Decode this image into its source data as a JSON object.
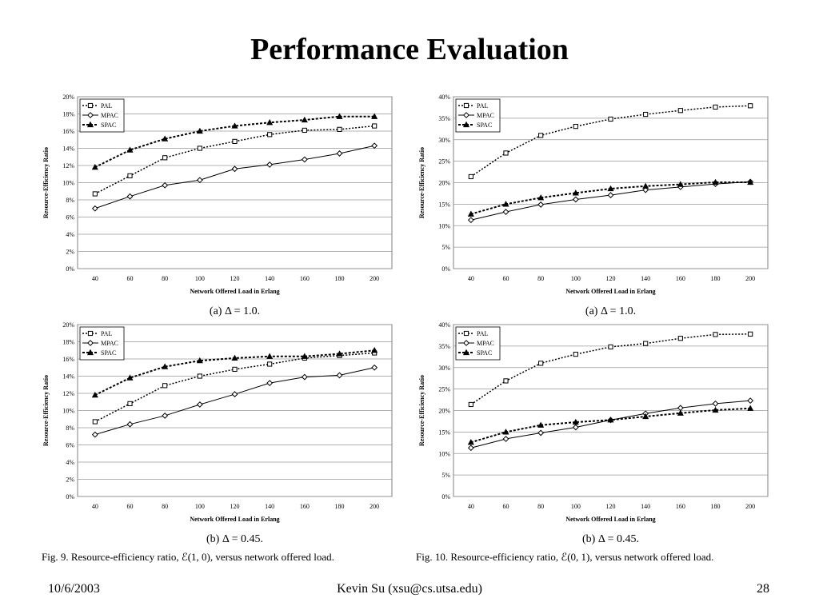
{
  "slide": {
    "title": "Performance Evaluation",
    "footer": {
      "date": "10/6/2003",
      "author": "Kevin Su (xsu@cs.utsa.edu)",
      "page": "28"
    },
    "fig9_caption": "Fig. 9.   Resource-efficiency ratio, ℰ(1, 0), versus network offered load.",
    "fig10_caption": "Fig. 10.   Resource-efficiency ratio, ℰ(0, 1), versus network offered load."
  },
  "chart_data": [
    {
      "type": "line",
      "subcaption": "(a) Δ = 1.0.",
      "xlabel": "Network Offered Load in Erlang",
      "ylabel": "Resource-Efficiency Ratio",
      "ylim": [
        0,
        20
      ],
      "yticks": [
        0,
        2,
        4,
        6,
        8,
        10,
        12,
        14,
        16,
        18,
        20
      ],
      "ytick_suffix": "%",
      "grid": true,
      "legend_position": "top-left",
      "x": [
        40,
        60,
        80,
        100,
        120,
        140,
        160,
        180,
        200
      ],
      "series": [
        {
          "name": "PAL",
          "marker": "square",
          "values": [
            8.7,
            10.8,
            12.9,
            14.0,
            14.8,
            15.6,
            16.1,
            16.2,
            16.6
          ]
        },
        {
          "name": "MPAC",
          "marker": "diamond",
          "values": [
            7.0,
            8.4,
            9.7,
            10.3,
            11.6,
            12.1,
            12.7,
            13.4,
            14.3
          ]
        },
        {
          "name": "SPAC",
          "marker": "triangle",
          "values": [
            11.8,
            13.8,
            15.1,
            16.0,
            16.6,
            17.0,
            17.3,
            17.7,
            17.7
          ]
        }
      ]
    },
    {
      "type": "line",
      "subcaption": "(a) Δ = 1.0.",
      "xlabel": "Network Offered Load in Erlang",
      "ylabel": "Resource-Efficiency Ratio",
      "ylim": [
        0,
        40
      ],
      "yticks": [
        0,
        5,
        10,
        15,
        20,
        25,
        30,
        35,
        40
      ],
      "ytick_suffix": "%",
      "grid": true,
      "legend_position": "top-left",
      "x": [
        40,
        60,
        80,
        100,
        120,
        140,
        160,
        180,
        200
      ],
      "series": [
        {
          "name": "PAL",
          "marker": "square",
          "values": [
            21.4,
            26.9,
            31.0,
            33.1,
            34.8,
            35.9,
            36.8,
            37.6,
            37.9
          ]
        },
        {
          "name": "MPAC",
          "marker": "diamond",
          "values": [
            11.3,
            13.2,
            14.9,
            16.1,
            17.1,
            18.3,
            19.0,
            19.7,
            20.2
          ]
        },
        {
          "name": "SPAC",
          "marker": "triangle",
          "values": [
            12.7,
            15.0,
            16.5,
            17.6,
            18.6,
            19.2,
            19.6,
            20.1,
            20.1
          ]
        }
      ]
    },
    {
      "type": "line",
      "subcaption": "(b) Δ = 0.45.",
      "xlabel": "Network Offered Load in Erlang",
      "ylabel": "Resource-Efficiency Ratio",
      "ylim": [
        0,
        20
      ],
      "yticks": [
        0,
        2,
        4,
        6,
        8,
        10,
        12,
        14,
        16,
        18,
        20
      ],
      "ytick_suffix": "%",
      "grid": true,
      "legend_position": "top-left",
      "x": [
        40,
        60,
        80,
        100,
        120,
        140,
        160,
        180,
        200
      ],
      "series": [
        {
          "name": "PAL",
          "marker": "square",
          "values": [
            8.7,
            10.8,
            12.9,
            14.0,
            14.8,
            15.4,
            16.1,
            16.4,
            16.7
          ]
        },
        {
          "name": "MPAC",
          "marker": "diamond",
          "values": [
            7.2,
            8.4,
            9.4,
            10.7,
            11.9,
            13.2,
            13.9,
            14.1,
            15.0
          ]
        },
        {
          "name": "SPAC",
          "marker": "triangle",
          "values": [
            11.8,
            13.8,
            15.1,
            15.8,
            16.1,
            16.3,
            16.3,
            16.6,
            17.0
          ]
        }
      ]
    },
    {
      "type": "line",
      "subcaption": "(b) Δ = 0.45.",
      "xlabel": "Network Offered Load in Erlang",
      "ylabel": "Resource-Efficiency Ratio",
      "ylim": [
        0,
        40
      ],
      "yticks": [
        0,
        5,
        10,
        15,
        20,
        25,
        30,
        35,
        40
      ],
      "ytick_suffix": "%",
      "grid": true,
      "legend_position": "top-left",
      "x": [
        40,
        60,
        80,
        100,
        120,
        140,
        160,
        180,
        200
      ],
      "series": [
        {
          "name": "PAL",
          "marker": "square",
          "values": [
            21.4,
            26.9,
            31.0,
            33.1,
            34.8,
            35.6,
            36.8,
            37.7,
            37.8
          ]
        },
        {
          "name": "MPAC",
          "marker": "diamond",
          "values": [
            11.3,
            13.4,
            14.8,
            16.1,
            17.8,
            19.3,
            20.6,
            21.6,
            22.3
          ]
        },
        {
          "name": "SPAC",
          "marker": "triangle",
          "values": [
            12.6,
            15.0,
            16.6,
            17.3,
            17.8,
            18.6,
            19.4,
            20.1,
            20.5
          ]
        }
      ]
    }
  ]
}
